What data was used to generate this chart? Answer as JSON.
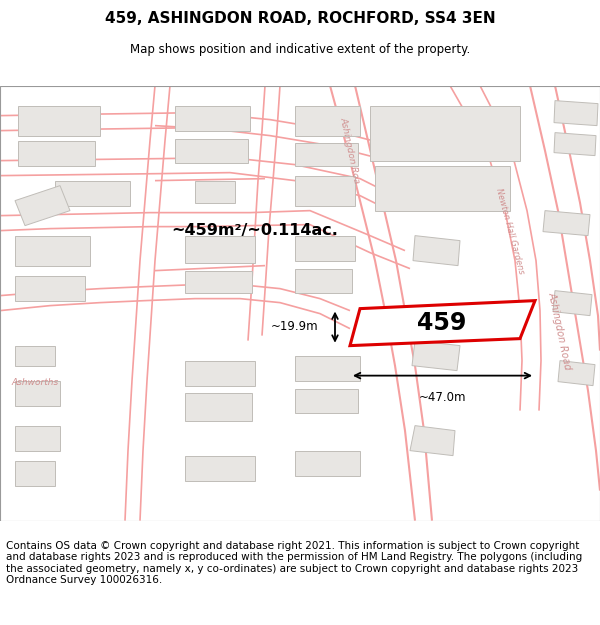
{
  "title_line1": "459, ASHINGDON ROAD, ROCHFORD, SS4 3EN",
  "title_line2": "Map shows position and indicative extent of the property.",
  "footer_text": "Contains OS data © Crown copyright and database right 2021. This information is subject to Crown copyright and database rights 2023 and is reproduced with the permission of HM Land Registry. The polygons (including the associated geometry, namely x, y co-ordinates) are subject to Crown copyright and database rights 2023 Ordnance Survey 100026316.",
  "map_bg": "#ffffff",
  "road_line_color": "#f5a0a0",
  "building_fill": "#e8e6e3",
  "building_edge": "#c8c5c0",
  "highlight_color": "#dd0000",
  "area_text": "~459m²/~0.114ac.",
  "width_label": "~47.0m",
  "height_label": "~19.9m",
  "property_number": "459",
  "title_fontsize": 11,
  "footer_fontsize": 7.5
}
